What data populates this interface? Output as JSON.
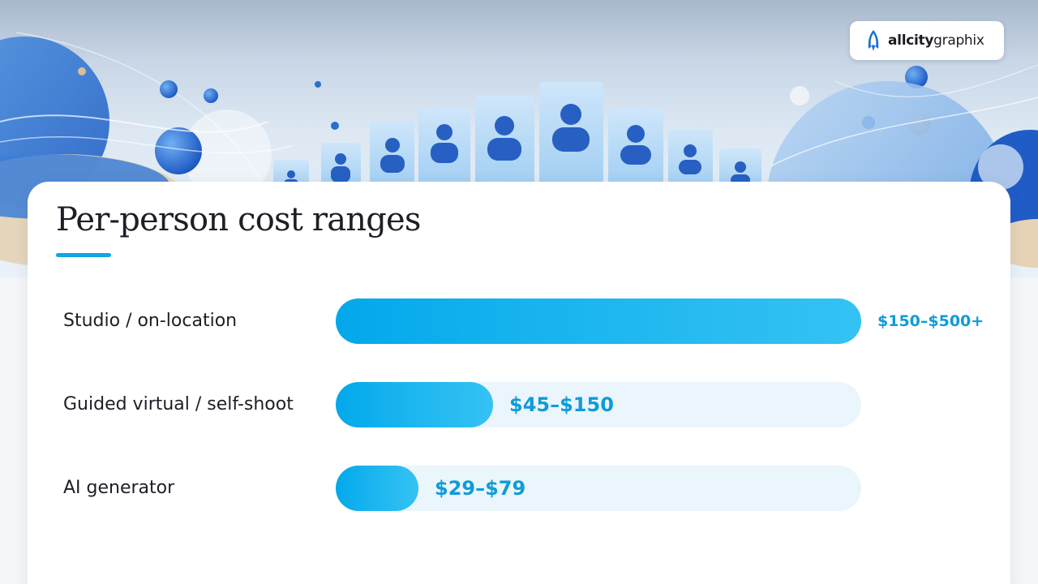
{
  "brand": {
    "name_bold": "allcity",
    "name_regular": "graphix",
    "icon": "rocket-logo-icon"
  },
  "chart_data": {
    "type": "bar",
    "orientation": "horizontal",
    "title": "Per-person cost ranges",
    "xlabel": "",
    "ylabel": "",
    "unit": "USD",
    "xlim": [
      0,
      500
    ],
    "categories": [
      "Studio / on-location",
      "Guided virtual / self-shoot",
      "AI generator"
    ],
    "range_labels": [
      "$150–$500+",
      "$45–$150",
      "$29–$79"
    ],
    "ranges": [
      [
        150,
        500
      ],
      [
        45,
        150
      ],
      [
        29,
        79
      ]
    ],
    "values": [
      500,
      150,
      79
    ],
    "grid": false,
    "legend": "none",
    "colors": {
      "bar": "#0fa6e6",
      "track": "#eaf5fc",
      "value_text": "#0f9bd9",
      "accent": "#0fa6e6"
    }
  }
}
